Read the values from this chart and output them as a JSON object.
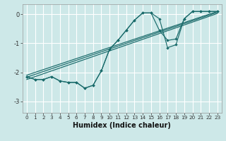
{
  "title": "",
  "xlabel": "Humidex (Indice chaleur)",
  "bg_color": "#cde8e8",
  "grid_color": "#ffffff",
  "line_color": "#1a6b6b",
  "xlim": [
    -0.5,
    23.5
  ],
  "ylim": [
    -3.4,
    0.35
  ],
  "xticks": [
    0,
    1,
    2,
    3,
    4,
    5,
    6,
    7,
    8,
    9,
    10,
    11,
    12,
    13,
    14,
    15,
    16,
    17,
    18,
    19,
    20,
    21,
    22,
    23
  ],
  "yticks": [
    0,
    -1,
    -2,
    -3
  ],
  "line1_x": [
    0,
    1,
    2,
    3,
    4,
    5,
    6,
    7,
    8,
    9,
    10,
    11,
    12,
    13,
    14,
    15,
    16,
    17,
    18,
    19,
    20,
    21,
    22,
    23
  ],
  "line1_y": [
    -2.15,
    -2.25,
    -2.25,
    -2.15,
    -2.3,
    -2.35,
    -2.35,
    -2.55,
    -2.45,
    -1.95,
    -1.2,
    -0.9,
    -0.55,
    -0.2,
    0.05,
    0.05,
    -0.15,
    -1.15,
    -1.05,
    -0.15,
    0.1,
    0.1,
    0.1,
    0.1
  ],
  "line2_x": [
    0,
    1,
    2,
    3,
    4,
    5,
    6,
    7,
    8,
    9,
    10,
    11,
    12,
    13,
    14,
    15,
    16,
    17,
    18,
    19,
    20,
    21,
    22,
    23
  ],
  "line2_y": [
    -2.15,
    -2.25,
    -2.25,
    -2.15,
    -2.3,
    -2.35,
    -2.35,
    -2.55,
    -2.45,
    -1.95,
    -1.2,
    -0.9,
    -0.55,
    -0.2,
    0.05,
    0.05,
    -0.55,
    -0.9,
    -0.85,
    -0.15,
    0.1,
    0.1,
    0.1,
    0.1
  ],
  "line3_x": [
    0,
    23
  ],
  "line3_y": [
    -2.1,
    0.1
  ],
  "line4_x": [
    0,
    23
  ],
  "line4_y": [
    -2.17,
    0.07
  ],
  "line5_x": [
    0,
    23
  ],
  "line5_y": [
    -2.25,
    0.03
  ]
}
